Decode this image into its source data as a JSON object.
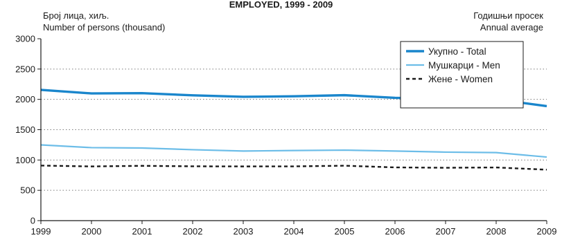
{
  "chart_data": {
    "type": "line",
    "title": "EMPLOYED, 1999 - 2009",
    "ylabel_lines": [
      "Број лица, хиљ.",
      "Number of persons (thousand)"
    ],
    "note_lines": [
      "Годишњи просек",
      "Annual average"
    ],
    "xlabel": "",
    "x": [
      "1999",
      "2000",
      "2001",
      "2002",
      "2003",
      "2004",
      "2005",
      "2006",
      "2007",
      "2008",
      "2009"
    ],
    "xlim": [
      1999,
      2009
    ],
    "ylim": [
      0,
      3000
    ],
    "yticks": [
      0,
      500,
      1000,
      1500,
      2000,
      2500,
      3000
    ],
    "grid": "horizontal dotted",
    "legend_position": "top-right",
    "series": [
      {
        "name": "Укупно  - Total",
        "color": "#1a86cc",
        "style": "solid-thick",
        "values": [
          2157,
          2098,
          2102,
          2067,
          2042,
          2051,
          2069,
          2026,
          2002,
          1999,
          1889
        ]
      },
      {
        "name": "Мушкарци  - Men",
        "color": "#6cbde8",
        "style": "solid",
        "values": [
          1249,
          1204,
          1198,
          1170,
          1148,
          1156,
          1163,
          1148,
          1130,
          1122,
          1049
        ]
      },
      {
        "name": "Жене  - Women",
        "color": "#1a1a1a",
        "style": "dashed",
        "values": [
          908,
          894,
          904,
          896,
          894,
          895,
          906,
          878,
          872,
          877,
          840
        ]
      }
    ]
  }
}
